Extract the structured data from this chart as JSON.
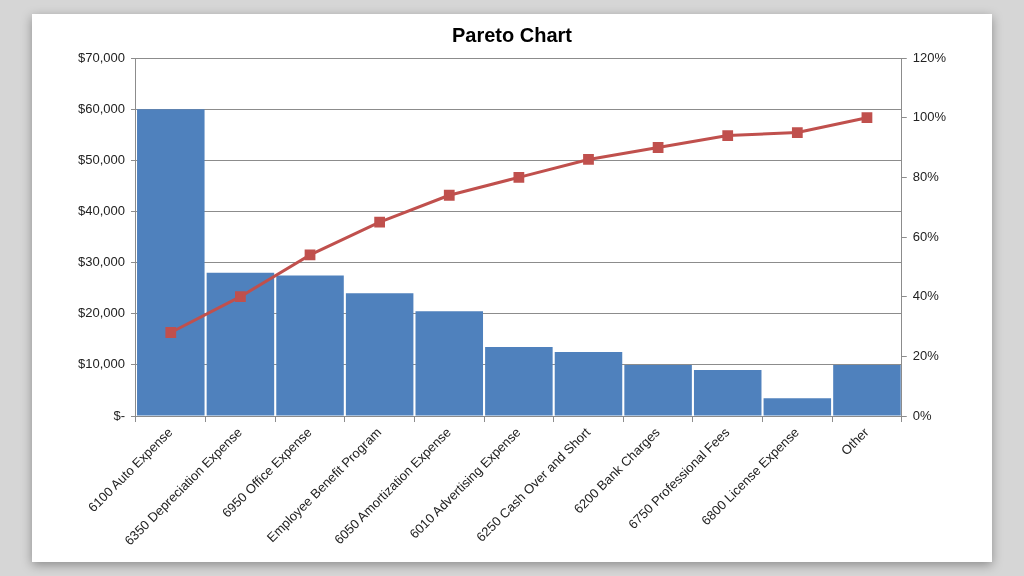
{
  "chart_data": {
    "type": "bar",
    "title": "Pareto Chart",
    "categories": [
      "6100 Auto Expense",
      "6350 Depreciation Expense",
      "6950 Office Expense",
      "Employee Benefit Program",
      "6050 Amortization Expense",
      "6010 Advertising Expense",
      "6250 Cash Over and Short",
      "6200 Bank Charges",
      "6750 Professional Fees",
      "6800 License Expense",
      "Other"
    ],
    "series": [
      {
        "color": "#4f81bd",
        "values": [
          60000,
          28000,
          27500,
          24000,
          20500,
          13500,
          12500,
          10000,
          9000,
          3500,
          10000
        ]
      },
      {
        "type": "line",
        "color": "#c0504d",
        "axis": "y2",
        "values": [
          28,
          40,
          54,
          65,
          74,
          80,
          86,
          90,
          94,
          95,
          100
        ]
      }
    ],
    "ylim": [
      0,
      70000
    ],
    "yticks": [
      {
        "value": 0,
        "label": "$-"
      },
      {
        "value": 10000,
        "label": "$10,000"
      },
      {
        "value": 20000,
        "label": "$20,000"
      },
      {
        "value": 30000,
        "label": "$30,000"
      },
      {
        "value": 40000,
        "label": "$40,000"
      },
      {
        "value": 50000,
        "label": "$50,000"
      },
      {
        "value": 60000,
        "label": "$60,000"
      },
      {
        "value": 70000,
        "label": "$70,000"
      }
    ],
    "y2lim": [
      0,
      120
    ],
    "y2ticks": [
      {
        "value": 0,
        "label": "0%"
      },
      {
        "value": 20,
        "label": "20%"
      },
      {
        "value": 40,
        "label": "40%"
      },
      {
        "value": 60,
        "label": "60%"
      },
      {
        "value": 80,
        "label": "80%"
      },
      {
        "value": 100,
        "label": "100%"
      },
      {
        "value": 120,
        "label": "120%"
      }
    ],
    "grid": "y",
    "legend": false,
    "marker": "square",
    "line_style": "solid"
  }
}
